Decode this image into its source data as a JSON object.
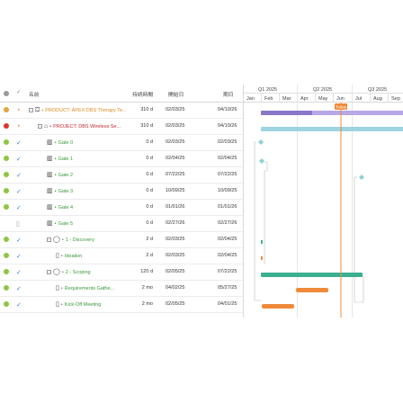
{
  "columns": {
    "name": "名前",
    "duration": "持続時間",
    "start": "開始日",
    "end": "期日"
  },
  "rows": [
    {
      "status": "#e8a33d",
      "mark": "tri",
      "indent": 0,
      "icon": "⛋",
      "name": "PRODUCT: APEX DBS Therapy Te...",
      "color": "#e08a1e",
      "duration": "310 d",
      "start": "02/03/25",
      "end": "04/10/26",
      "expand": "⊟"
    },
    {
      "status": "#d9352b",
      "mark": "tri",
      "indent": 1,
      "icon": "⌂",
      "name": "PROJECT: DBS Wireless Se...",
      "color": "#c8242b",
      "duration": "310 d",
      "start": "02/03/25",
      "end": "04/10/26",
      "expand": "⊟"
    },
    {
      "status": "#8cc63f",
      "mark": "chk",
      "indent": 2,
      "icon": "▥",
      "name": "Gate 0",
      "color": "#3a9a3a",
      "duration": "0 d",
      "start": "02/03/25",
      "end": "02/03/25"
    },
    {
      "status": "#8cc63f",
      "mark": "chk",
      "indent": 2,
      "icon": "▥",
      "name": "Gate 1",
      "color": "#3a9a3a",
      "duration": "0 d",
      "start": "02/04/25",
      "end": "02/04/25"
    },
    {
      "status": "#8cc63f",
      "mark": "chk",
      "indent": 2,
      "icon": "▥",
      "name": "Gate 2",
      "color": "#3a9a3a",
      "duration": "0 d",
      "start": "07/22/25",
      "end": "07/22/25"
    },
    {
      "status": "#8cc63f",
      "mark": "chk",
      "indent": 2,
      "icon": "▥",
      "name": "Gate 3",
      "color": "#3a9a3a",
      "duration": "0 d",
      "start": "10/09/25",
      "end": "10/09/25"
    },
    {
      "status": "#8cc63f",
      "mark": "chk",
      "indent": 2,
      "icon": "▥",
      "name": "Gate 4",
      "color": "#3a9a3a",
      "duration": "0 d",
      "start": "01/01/26",
      "end": "01/01/26"
    },
    {
      "status": "none",
      "mark": "doc",
      "indent": 2,
      "icon": "▥",
      "name": "Gate 5",
      "color": "#3a9a3a",
      "duration": "0 d",
      "start": "02/27/26",
      "end": "02/27/26"
    },
    {
      "status": "#8cc63f",
      "mark": "chk",
      "indent": 2,
      "icon": "◯",
      "name": "1 - Discovery",
      "color": "#3a9a3a",
      "duration": "2 d",
      "start": "02/03/25",
      "end": "02/04/25",
      "expand": "⊟"
    },
    {
      "status": "#8cc63f",
      "mark": "chk",
      "indent": 3,
      "icon": "▯",
      "name": "Ideation",
      "color": "#3a9a3a",
      "duration": "2 d",
      "start": "02/03/25",
      "end": "02/04/25"
    },
    {
      "status": "#8cc63f",
      "mark": "chk",
      "indent": 2,
      "icon": "◯",
      "name": "2 - Scoping",
      "color": "#3a9a3a",
      "duration": "120 d",
      "start": "02/05/25",
      "end": "07/22/25",
      "expand": "⊟"
    },
    {
      "status": "#8cc63f",
      "mark": "chk",
      "indent": 3,
      "icon": "▯",
      "name": "Requirements Gathe...",
      "color": "#3a9a3a",
      "duration": "2 mo",
      "start": "04/02/25",
      "end": "05/27/25"
    },
    {
      "status": "#8cc63f",
      "mark": "chk",
      "indent": 3,
      "icon": "▯",
      "name": "Kick-Off Meeting",
      "color": "#3a9a3a",
      "duration": "2 mo",
      "start": "02/05/25",
      "end": "04/01/25"
    },
    {
      "status": "#8cc63f",
      "mark": "chk",
      "indent": 3,
      "icon": "▯",
      "name": "",
      "color": "#3a9a3a",
      "duration": "",
      "start": "",
      "end": ""
    }
  ],
  "chart": {
    "quarters": [
      "Q1 2025",
      "Q2 2025",
      "Q3 2025"
    ],
    "months": [
      "Jan",
      "Feb",
      "Mar",
      "Apr",
      "May",
      "Jun",
      "Jul",
      "Aug",
      "Sep"
    ],
    "today_label": "Today"
  }
}
